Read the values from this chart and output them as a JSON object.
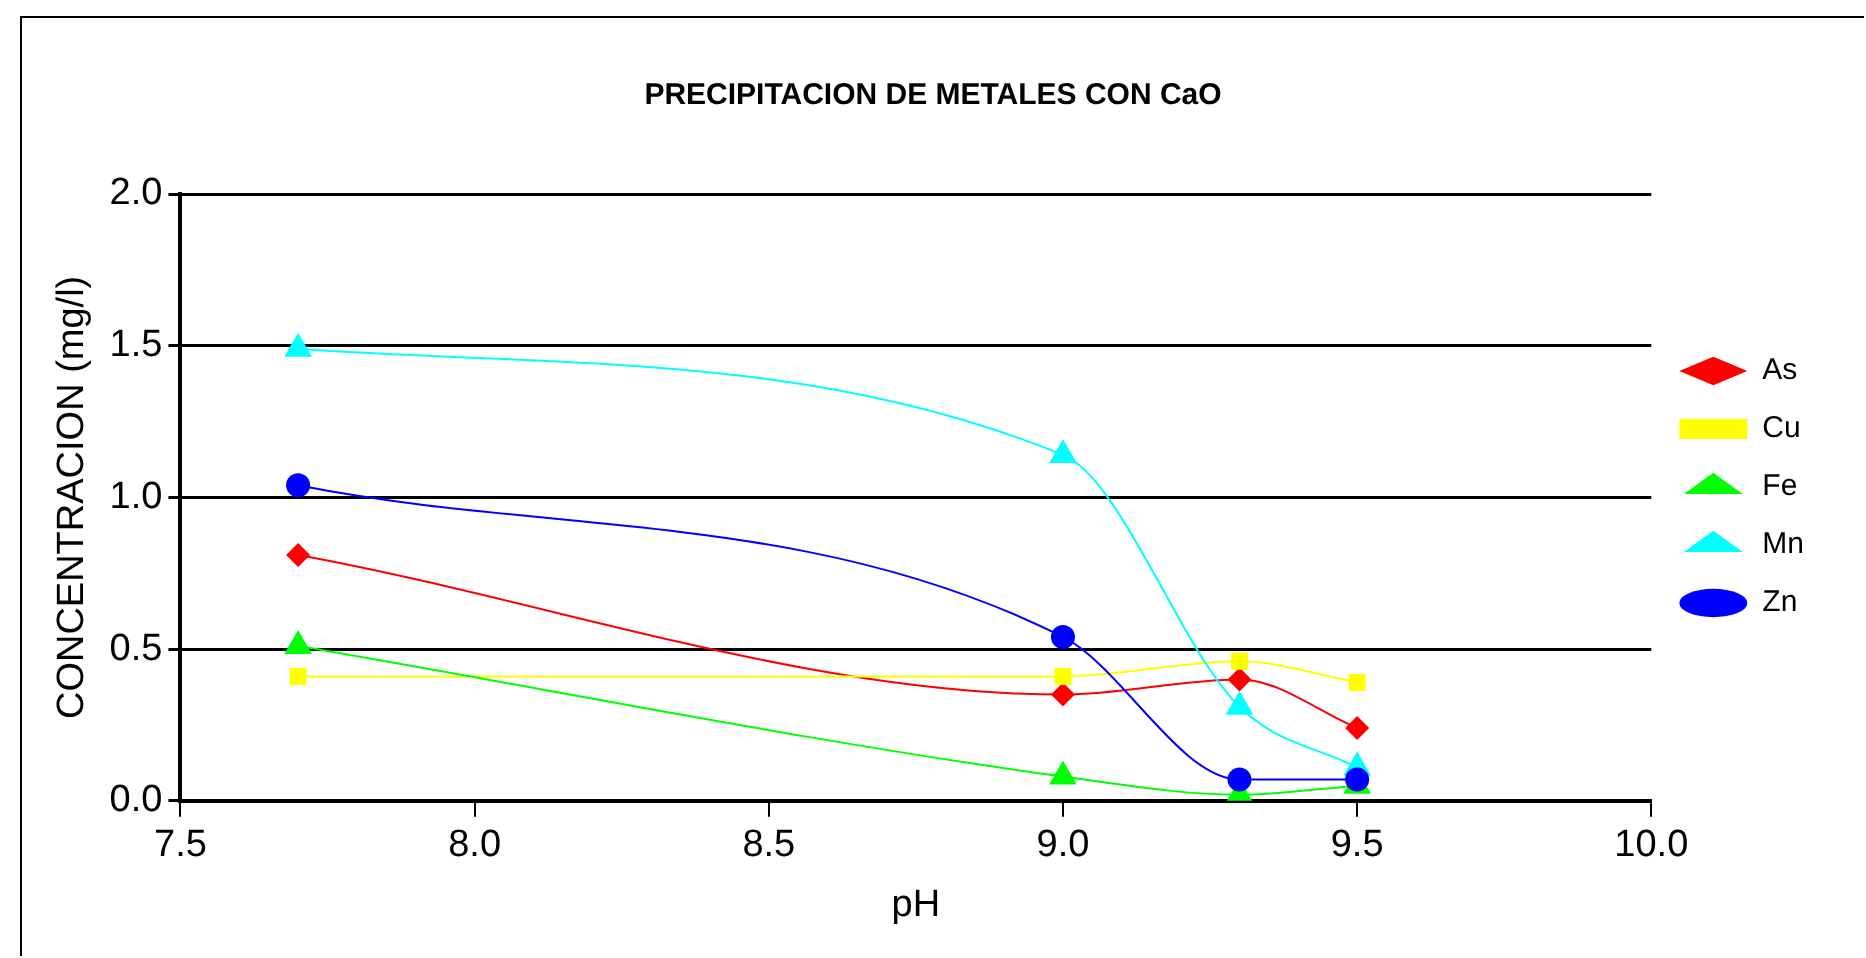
{
  "chart_data": {
    "type": "line",
    "title": "PRECIPITACION DE METALES CON CaO",
    "xlabel": "pH",
    "ylabel": "CONCENTRACION (mg/l)",
    "x": [
      7.7,
      9.0,
      9.3,
      9.5
    ],
    "series": [
      {
        "name": "As",
        "color": "#ff0000",
        "marker": "diamond",
        "values": [
          0.81,
          0.35,
          0.4,
          0.24
        ]
      },
      {
        "name": "Cu",
        "color": "#ffff00",
        "marker": "square",
        "values": [
          0.41,
          0.41,
          0.46,
          0.39
        ]
      },
      {
        "name": "Fe",
        "color": "#00ff00",
        "marker": "triangle",
        "values": [
          0.51,
          0.08,
          0.02,
          0.05
        ]
      },
      {
        "name": "Mn",
        "color": "#00ffff",
        "marker": "triangle",
        "values": [
          1.49,
          1.14,
          0.31,
          0.11
        ]
      },
      {
        "name": "Zn",
        "color": "#0000ff",
        "marker": "circle",
        "values": [
          1.04,
          0.54,
          0.07,
          0.07
        ]
      }
    ],
    "xlim": [
      7.5,
      10.0
    ],
    "xticks": [
      7.5,
      {
        "value": 8,
        "label": "8.0"
      },
      8.5,
      {
        "value": 9,
        "label": "9.0"
      },
      9.5,
      {
        "value": 10,
        "label": "10.0"
      }
    ],
    "ylim": [
      0,
      2.0
    ],
    "yticks": [
      {
        "value": 0,
        "label": "0.0"
      },
      0.5,
      {
        "value": 1,
        "label": "1.0"
      },
      1.5,
      {
        "value": 2,
        "label": "2.0"
      }
    ],
    "grid": "y",
    "legend": "right",
    "line_style": "solid"
  }
}
